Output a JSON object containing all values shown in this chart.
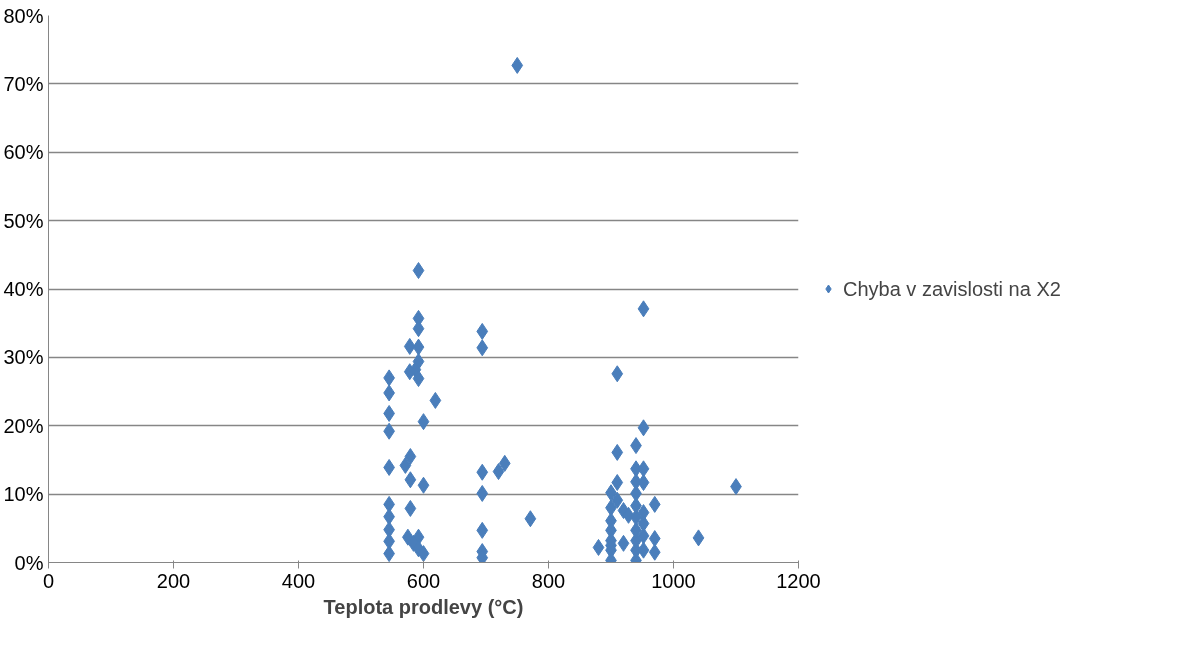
{
  "chart_data": {
    "type": "scatter",
    "xlabel": "Teplota prodlevy (°C)",
    "x": [
      545,
      545,
      545,
      545,
      545,
      545,
      545,
      545,
      545,
      545,
      578,
      592,
      592,
      592,
      592,
      587,
      578,
      592,
      571,
      579,
      579,
      579,
      575,
      592,
      584,
      592,
      600,
      600,
      600,
      619,
      592,
      694,
      694,
      694,
      694,
      694,
      694,
      694,
      720,
      730,
      750,
      771,
      880,
      900,
      900,
      900,
      900,
      900,
      900,
      900,
      900,
      910,
      910,
      910,
      910,
      920,
      920,
      928,
      940,
      940,
      940,
      940,
      940,
      940,
      940,
      940,
      940,
      940,
      952,
      952,
      952,
      952,
      952,
      952,
      952,
      952,
      970,
      970,
      970,
      1040,
      1100
    ],
    "series": [
      {
        "name": "Chyba v zavislosti na X2",
        "color": "#4a7ebb",
        "values": [
          27.0,
          24.8,
          21.8,
          19.2,
          13.9,
          8.5,
          6.7,
          4.8,
          3.1,
          1.3,
          31.6,
          35.7,
          34.2,
          31.5,
          29.4,
          28.2,
          27.9,
          26.9,
          14.2,
          15.5,
          12.1,
          7.9,
          3.7,
          3.7,
          2.8,
          2.0,
          1.3,
          11.3,
          20.6,
          23.7,
          42.7,
          33.8,
          31.4,
          13.2,
          10.1,
          4.7,
          1.6,
          0.7,
          13.3,
          14.5,
          72.7,
          6.4,
          2.2,
          0.3,
          1.8,
          2.5,
          3.2,
          4.7,
          6.1,
          8.0,
          10.2,
          11.7,
          16.1,
          27.6,
          9.1,
          7.6,
          2.8,
          6.9,
          0.3,
          1.8,
          3.2,
          4.7,
          6.6,
          8.3,
          10.1,
          11.8,
          13.7,
          17.1,
          1.8,
          3.9,
          5.7,
          7.3,
          11.7,
          13.7,
          19.7,
          37.1,
          1.5,
          3.5,
          8.5,
          3.6,
          11.1
        ]
      }
    ],
    "xlim": [
      0,
      1200
    ],
    "xticks": [
      0,
      200,
      400,
      600,
      800,
      1000,
      1200
    ],
    "ylim": [
      0,
      80
    ],
    "yticks": [
      {
        "value": 0,
        "label": "0%"
      },
      {
        "value": 10,
        "label": "10%"
      },
      {
        "value": 20,
        "label": "20%"
      },
      {
        "value": 30,
        "label": "30%"
      },
      {
        "value": 40,
        "label": "40%"
      },
      {
        "value": 50,
        "label": "50%"
      },
      {
        "value": 60,
        "label": "60%"
      },
      {
        "value": 70,
        "label": "70%"
      },
      {
        "value": 80,
        "label": "80%"
      }
    ],
    "grid": "y",
    "legend": "right",
    "marker": "diamond"
  }
}
